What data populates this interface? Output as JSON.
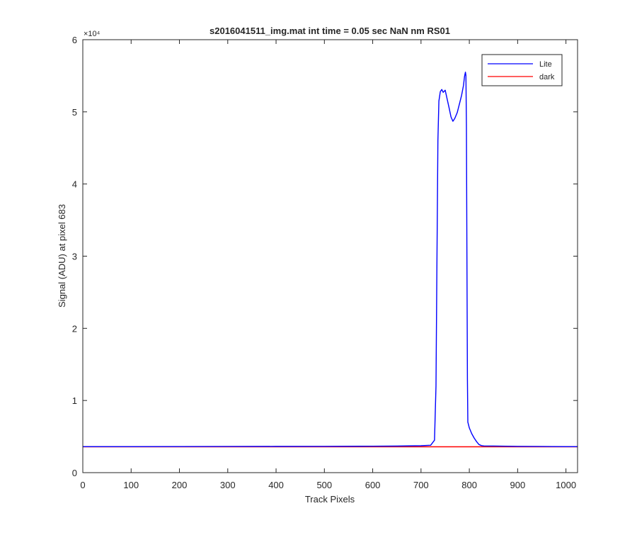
{
  "chart_data": {
    "type": "line",
    "title": "s2016041511_img.mat int time = 0.05 sec  NaN nm RS01",
    "xlabel": "Track Pixels",
    "ylabel": "Signal (ADU) at pixel 683",
    "xlim": [
      0,
      1024
    ],
    "ylim": [
      0,
      60000
    ],
    "y_exponent_label": "×10⁴",
    "x_ticks": [
      0,
      100,
      200,
      300,
      400,
      500,
      600,
      700,
      800,
      900,
      1000
    ],
    "y_ticks": [
      0,
      10000,
      20000,
      30000,
      40000,
      50000,
      60000
    ],
    "y_tick_labels": [
      "0",
      "1",
      "2",
      "3",
      "4",
      "5",
      "6"
    ],
    "grid": false,
    "legend": {
      "position": "top-right",
      "entries": [
        "Lite",
        "dark"
      ]
    },
    "series": [
      {
        "name": "Lite",
        "color": "#0000ff",
        "x": [
          0,
          100,
          200,
          300,
          400,
          500,
          600,
          650,
          700,
          720,
          728,
          731,
          733,
          735,
          737,
          740,
          743,
          746,
          750,
          754,
          758,
          762,
          766,
          770,
          775,
          780,
          784,
          788,
          790,
          792,
          793,
          794,
          795,
          796,
          797,
          800,
          805,
          810,
          815,
          820,
          825,
          830,
          850,
          900,
          1000,
          1024
        ],
        "y": [
          3600,
          3600,
          3610,
          3620,
          3630,
          3640,
          3660,
          3680,
          3730,
          3800,
          4500,
          12000,
          30000,
          46000,
          51500,
          52800,
          53100,
          52700,
          53000,
          51800,
          50600,
          49300,
          48700,
          49100,
          49900,
          51200,
          52300,
          53700,
          54900,
          55500,
          55000,
          48000,
          30000,
          13000,
          7000,
          6200,
          5400,
          4800,
          4300,
          3900,
          3750,
          3700,
          3690,
          3640,
          3600,
          3600
        ]
      },
      {
        "name": "dark",
        "color": "#ff0000",
        "x": [
          0,
          1024
        ],
        "y": [
          3580,
          3580
        ]
      }
    ]
  }
}
